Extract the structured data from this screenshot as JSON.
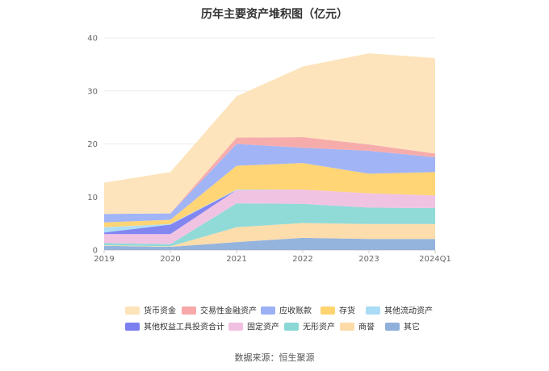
{
  "chart_data": {
    "type": "area",
    "stacked": true,
    "title": "历年主要资产堆积图（亿元）",
    "x": [
      "2019",
      "2020",
      "2021",
      "2022",
      "2023",
      "2024Q1"
    ],
    "ylim": [
      0,
      40
    ],
    "yticks": [
      0,
      10,
      20,
      30,
      40
    ],
    "grid": true,
    "legend_position": "bottom",
    "series": [
      {
        "name": "其它",
        "color": "#8fb0db",
        "values": [
          0.8,
          0.6,
          1.5,
          2.3,
          2.1,
          2.1
        ]
      },
      {
        "name": "商誉",
        "color": "#fddba8",
        "values": [
          0.1,
          0.1,
          2.8,
          2.8,
          2.8,
          2.8
        ]
      },
      {
        "name": "无形资产",
        "color": "#8ad8d6",
        "values": [
          0.4,
          0.4,
          4.5,
          3.6,
          3.1,
          3.0
        ]
      },
      {
        "name": "固定资产",
        "color": "#f0c0e0",
        "values": [
          1.7,
          1.9,
          2.5,
          2.7,
          2.7,
          2.4
        ]
      },
      {
        "name": "其他权益工具投资合计",
        "color": "#7b7ff0",
        "values": [
          0.3,
          1.8,
          0.0,
          0.0,
          0.0,
          0.0
        ]
      },
      {
        "name": "其他流动资产",
        "color": "#aadcf5",
        "values": [
          1.0,
          0.1,
          0.1,
          0.0,
          0.0,
          0.0
        ]
      },
      {
        "name": "存货",
        "color": "#ffd36e",
        "values": [
          0.9,
          0.8,
          4.5,
          5.0,
          3.7,
          4.4
        ]
      },
      {
        "name": "应收账款",
        "color": "#9cb0f5",
        "values": [
          1.6,
          1.2,
          4.1,
          2.9,
          4.3,
          2.8
        ]
      },
      {
        "name": "交易性金融资产",
        "color": "#f7a8a8",
        "values": [
          0.0,
          0.0,
          1.2,
          2.0,
          1.2,
          0.7
        ]
      },
      {
        "name": "货币资金",
        "color": "#fde3b8",
        "values": [
          5.9,
          7.8,
          7.8,
          13.3,
          17.2,
          18.0
        ]
      }
    ],
    "legend_order": [
      "货币资金",
      "交易性金融资产",
      "应收账款",
      "存货",
      "其他流动资产",
      "其他权益工具投资合计",
      "固定资产",
      "无形资产",
      "商誉",
      "其它"
    ]
  },
  "source_text": "数据来源：恒生聚源"
}
